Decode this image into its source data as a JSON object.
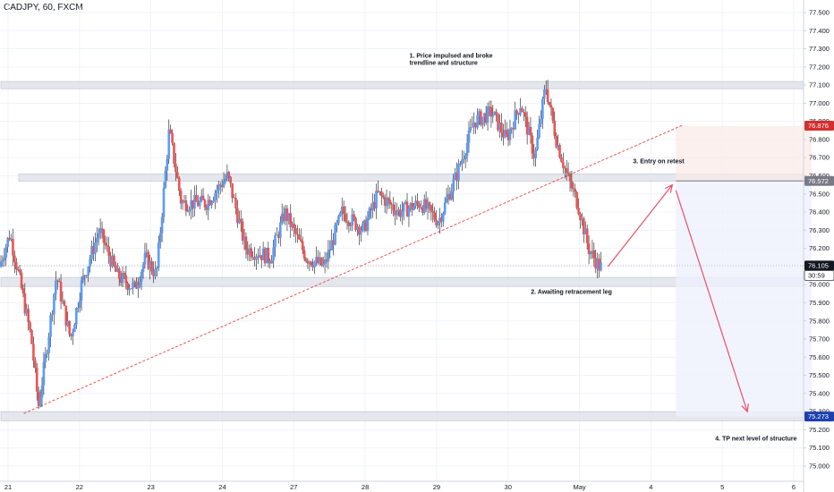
{
  "header": {
    "symbol": "CADJPY, 60, FXCM"
  },
  "colors": {
    "up": "#5b9cf6",
    "down": "#ef5350",
    "wick": "#131722",
    "zone": "#e0e3eb",
    "trendline": "#ef5350",
    "arrow": "#ef4f6a",
    "badge_sl": "#d32f2f",
    "badge_entry": "#787b86",
    "badge_last": "#131722",
    "badge_tp": "#1e40af",
    "badge_timer": "#ffffff"
  },
  "chart_data": {
    "type": "candlestick",
    "title": "CADJPY, 60, FXCM",
    "ylim": [
      74.9,
      77.6
    ],
    "y_ticks": [
      "77.500",
      "77.400",
      "77.300",
      "77.200",
      "77.100",
      "77.000",
      "76.900",
      "76.800",
      "76.700",
      "76.600",
      "76.500",
      "76.400",
      "76.300",
      "76.200",
      "76.100",
      "76.000",
      "75.900",
      "75.800",
      "75.700",
      "75.600",
      "75.500",
      "75.400",
      "75.300",
      "75.200",
      "75.100",
      "75.000"
    ],
    "x_ticks": [
      {
        "label": "21",
        "pos": 0.5
      },
      {
        "label": "22",
        "pos": 1.5
      },
      {
        "label": "23",
        "pos": 2.5
      },
      {
        "label": "24",
        "pos": 3.5
      },
      {
        "label": "27",
        "pos": 4.5
      },
      {
        "label": "28",
        "pos": 5.5
      },
      {
        "label": "29",
        "pos": 6.5
      },
      {
        "label": "30",
        "pos": 7.5
      },
      {
        "label": "May",
        "pos": 8.5
      },
      {
        "label": "4",
        "pos": 9.5
      },
      {
        "label": "5",
        "pos": 10.5
      },
      {
        "label": "6",
        "pos": 11.5
      }
    ],
    "x_range": [
      0.4,
      11.75
    ],
    "price_path": [
      {
        "t": 0.4,
        "p": 76.1
      },
      {
        "t": 0.55,
        "p": 76.28
      },
      {
        "t": 0.7,
        "p": 76.0
      },
      {
        "t": 0.85,
        "p": 75.7
      },
      {
        "t": 0.95,
        "p": 75.33
      },
      {
        "t": 1.05,
        "p": 75.6
      },
      {
        "t": 1.2,
        "p": 76.05
      },
      {
        "t": 1.4,
        "p": 75.7
      },
      {
        "t": 1.55,
        "p": 76.0
      },
      {
        "t": 1.8,
        "p": 76.3
      },
      {
        "t": 2.05,
        "p": 76.05
      },
      {
        "t": 2.3,
        "p": 75.98
      },
      {
        "t": 2.45,
        "p": 76.15
      },
      {
        "t": 2.6,
        "p": 76.05
      },
      {
        "t": 2.78,
        "p": 76.85
      },
      {
        "t": 2.95,
        "p": 76.45
      },
      {
        "t": 3.3,
        "p": 76.45
      },
      {
        "t": 3.6,
        "p": 76.6
      },
      {
        "t": 3.85,
        "p": 76.2
      },
      {
        "t": 4.2,
        "p": 76.15
      },
      {
        "t": 4.4,
        "p": 76.4
      },
      {
        "t": 4.7,
        "p": 76.15
      },
      {
        "t": 4.95,
        "p": 76.1
      },
      {
        "t": 5.2,
        "p": 76.4
      },
      {
        "t": 5.5,
        "p": 76.3
      },
      {
        "t": 5.7,
        "p": 76.5
      },
      {
        "t": 6.0,
        "p": 76.4
      },
      {
        "t": 6.3,
        "p": 76.45
      },
      {
        "t": 6.55,
        "p": 76.35
      },
      {
        "t": 6.8,
        "p": 76.6
      },
      {
        "t": 7.05,
        "p": 76.9
      },
      {
        "t": 7.3,
        "p": 76.95
      },
      {
        "t": 7.5,
        "p": 76.8
      },
      {
        "t": 7.7,
        "p": 77.0
      },
      {
        "t": 7.9,
        "p": 76.7
      },
      {
        "t": 8.05,
        "p": 77.1
      },
      {
        "t": 8.2,
        "p": 76.8
      },
      {
        "t": 8.35,
        "p": 76.6
      },
      {
        "t": 8.5,
        "p": 76.45
      },
      {
        "t": 8.65,
        "p": 76.2
      },
      {
        "t": 8.8,
        "p": 76.1
      }
    ],
    "zones": [
      {
        "from": 77.08,
        "to": 77.12,
        "start": 0.4
      },
      {
        "from": 76.57,
        "to": 76.61,
        "start": 0.65
      },
      {
        "from": 75.99,
        "to": 76.04,
        "start": 0.4
      },
      {
        "from": 75.25,
        "to": 75.3,
        "start": 0.4
      }
    ],
    "trendline": {
      "t1": 0.72,
      "p1": 75.29,
      "t2": 9.95,
      "p2": 76.88
    },
    "position": {
      "entry": 76.572,
      "stop": 76.876,
      "target": 75.273,
      "t1": 9.85,
      "t2": 11.75
    },
    "path_arrows": [
      {
        "t1": 8.9,
        "p1": 76.1,
        "t2": 9.8,
        "p2": 76.55
      },
      {
        "t1": 9.85,
        "p1": 76.52,
        "t2": 10.85,
        "p2": 75.3
      }
    ],
    "last_price": 76.105,
    "price_badges": [
      {
        "value": "76.876",
        "price": 76.876,
        "color_key": "badge_sl"
      },
      {
        "value": "76.572",
        "price": 76.572,
        "color_key": "badge_entry"
      },
      {
        "value": "76.105",
        "price": 76.105,
        "color_key": "badge_last"
      },
      {
        "value": "30:59",
        "price": 76.03,
        "color_key": "badge_timer"
      },
      {
        "value": "75.273",
        "price": 75.273,
        "color_key": "badge_tp"
      }
    ],
    "annotations": [
      {
        "lines": [
          "1. Price impulsed and broke",
          "trendline and structure"
        ],
        "t": 6.12,
        "p": 77.25
      },
      {
        "lines": [
          "2. Awaiting retracement leg"
        ],
        "t": 7.82,
        "p": 75.95
      },
      {
        "lines": [
          "3. Entry on retest"
        ],
        "t": 9.25,
        "p": 76.67
      },
      {
        "lines": [
          "4. TP next level of structure"
        ],
        "t": 10.4,
        "p": 75.14
      }
    ]
  }
}
